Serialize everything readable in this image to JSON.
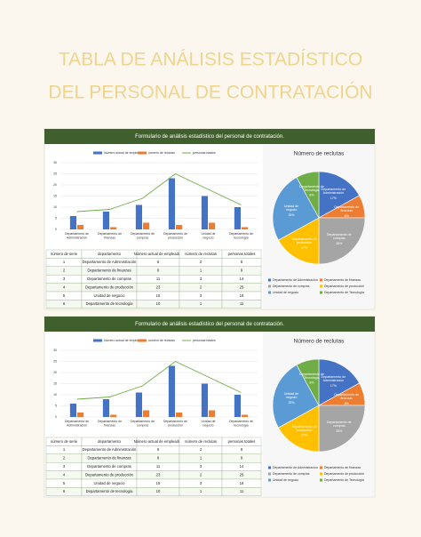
{
  "title": [
    "TABLA DE ANÁLISIS ESTADÍSTICO",
    "DEL PERSONAL DE CONTRATACIÓN"
  ],
  "panels": [
    {
      "header": "Formulario de análisis estadístico del personal de contratación.",
      "chart": {
        "type": "bar",
        "categories": [
          "Departamento de Administración",
          "Departamento de finanzas",
          "Departamento de compras",
          "Departamento de producción",
          "Unidad de negocio",
          "Departamento de tecnología"
        ],
        "series": [
          {
            "name": "Número actual de empleados",
            "color": "#4472c4",
            "values": [
              6,
              8,
              11,
              23,
              15,
              10
            ]
          },
          {
            "name": "número de reclutas",
            "color": "#ed7d31",
            "values": [
              2,
              1,
              3,
              2,
              3,
              1
            ]
          },
          {
            "name": "personas totales",
            "color": "#70ad47",
            "type": "line",
            "values": [
              8,
              9,
              14,
              25,
              18,
              11
            ]
          }
        ],
        "ylim": [
          0,
          30
        ],
        "yticks": [
          0,
          5,
          10,
          15,
          20,
          25,
          30
        ]
      },
      "pie": {
        "type": "pie",
        "title": "Número de reclutas",
        "labels": [
          "Departamento de Administración",
          "Departamento de finanzas",
          "Departamento de compras",
          "Departamento de producción",
          "Unidad de negocio",
          "Departamento de Tecnología"
        ],
        "values": [
          17,
          8,
          25,
          17,
          25,
          8
        ],
        "value_labels": [
          "17%",
          "8%",
          "25%",
          "17%",
          "25%",
          "8%"
        ],
        "colors": [
          "#4472c4",
          "#ed7d31",
          "#a5a5a5",
          "#ffc000",
          "#5b9bd5",
          "#70ad47"
        ]
      },
      "table": {
        "columns": [
          "número de serie",
          "departamento",
          "Número actual de empleados",
          "número de reclutas",
          "personas totales"
        ],
        "rows": [
          [
            1,
            "Departamento de Administración",
            6,
            2,
            8
          ],
          [
            2,
            "Departamento de finanzas",
            8,
            1,
            9
          ],
          [
            3,
            "Departamento de compras",
            11,
            3,
            14
          ],
          [
            4,
            "Departamento de producción",
            23,
            2,
            25
          ],
          [
            5,
            "Unidad de negocio",
            15,
            3,
            18
          ],
          [
            6,
            "Departamento de tecnología",
            10,
            1,
            11
          ]
        ]
      }
    },
    {
      "header": "Formulario de análisis estadístico del personal de contratación.",
      "chart": {
        "type": "bar",
        "categories": [
          "Departamento de Administración",
          "Departamento de finanzas",
          "Departamento de compras",
          "Departamento de producción",
          "Unidad de negocio",
          "Departamento de tecnología"
        ],
        "series": [
          {
            "name": "Número actual de empleados",
            "color": "#4472c4",
            "values": [
              6,
              8,
              11,
              23,
              15,
              10
            ]
          },
          {
            "name": "número de reclutas",
            "color": "#ed7d31",
            "values": [
              2,
              1,
              3,
              2,
              3,
              1
            ]
          },
          {
            "name": "personas totales",
            "color": "#70ad47",
            "type": "line",
            "values": [
              8,
              9,
              14,
              25,
              18,
              11
            ]
          }
        ],
        "ylim": [
          0,
          30
        ],
        "yticks": [
          0,
          5,
          10,
          15,
          20,
          25,
          30
        ]
      },
      "pie": {
        "type": "pie",
        "title": "Número de reclutas",
        "labels": [
          "Departamento de Administración",
          "Departamento de finanzas",
          "Departamento de compras",
          "Departamento de producción",
          "Unidad de negocio",
          "Departamento de Tecnología"
        ],
        "values": [
          17,
          8,
          25,
          17,
          25,
          8
        ],
        "value_labels": [
          "17%",
          "8%",
          "25%",
          "17%",
          "25%",
          "8%"
        ],
        "colors": [
          "#4472c4",
          "#ed7d31",
          "#a5a5a5",
          "#ffc000",
          "#5b9bd5",
          "#70ad47"
        ]
      },
      "table": {
        "columns": [
          "número de serie",
          "departamento",
          "Número actual de empleados",
          "número de reclutas",
          "personas totales"
        ],
        "rows": [
          [
            1,
            "Departamento de Administración",
            6,
            2,
            8
          ],
          [
            2,
            "Departamento de finanzas",
            8,
            1,
            9
          ],
          [
            3,
            "Departamento de compras",
            11,
            3,
            14
          ],
          [
            4,
            "Departamento de producción",
            23,
            2,
            25
          ],
          [
            5,
            "Unidad de negocio",
            15,
            3,
            18
          ],
          [
            6,
            "Departamento de tecnología",
            10,
            1,
            11
          ]
        ]
      }
    }
  ]
}
